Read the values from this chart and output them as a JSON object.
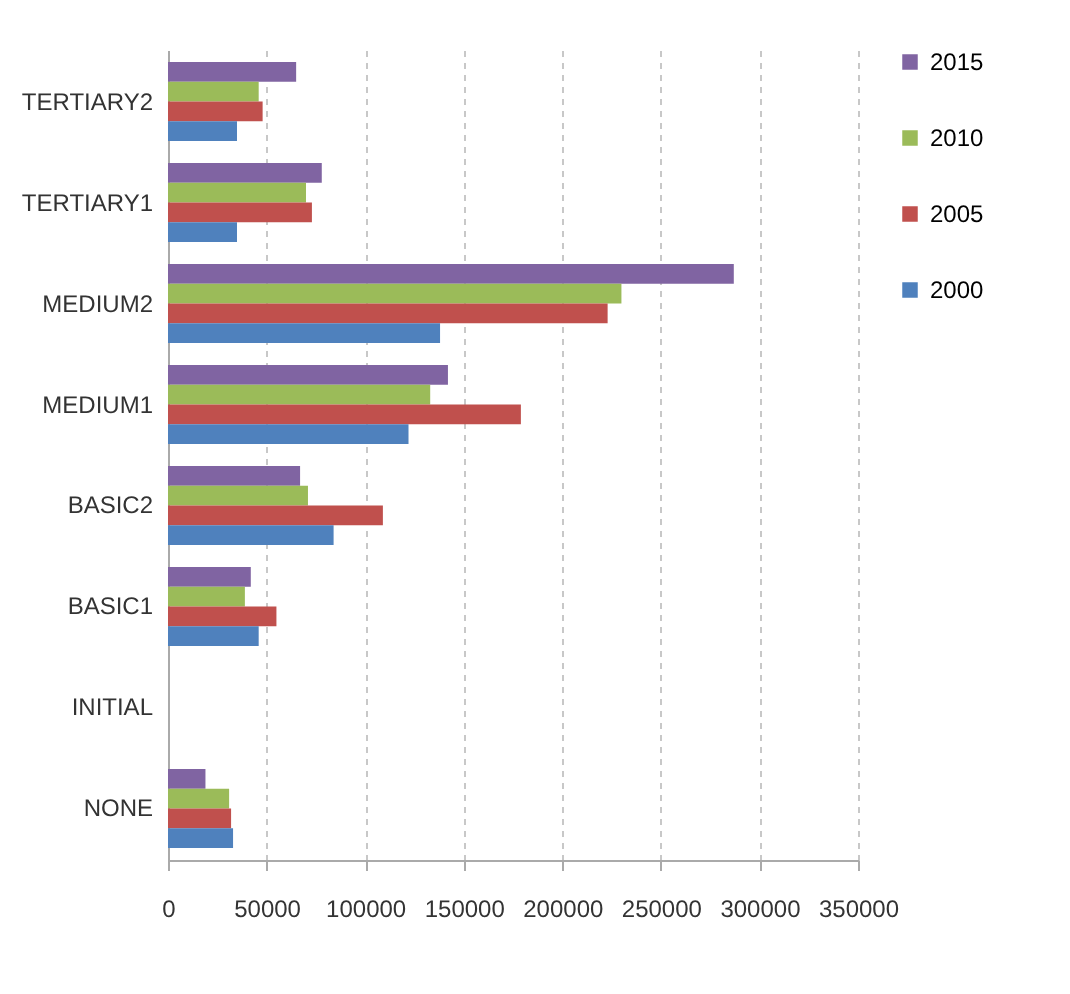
{
  "chart_data": {
    "type": "bar",
    "orientation": "horizontal",
    "categories": [
      "TERTIARY2",
      "TERTIARY1",
      "MEDIUM2",
      "MEDIUM1",
      "BASIC2",
      "BASIC1",
      "INITIAL",
      "NONE"
    ],
    "series": [
      {
        "name": "2015",
        "color": "#8064a2",
        "values": [
          65000,
          78000,
          287000,
          142000,
          67000,
          42000,
          null,
          19000
        ]
      },
      {
        "name": "2010",
        "color": "#9bbb59",
        "values": [
          46000,
          70000,
          230000,
          133000,
          71000,
          39000,
          null,
          31000
        ]
      },
      {
        "name": "2005",
        "color": "#c0504d",
        "values": [
          48000,
          73000,
          223000,
          179000,
          109000,
          55000,
          null,
          32000
        ]
      },
      {
        "name": "2000",
        "color": "#4f81bd",
        "values": [
          35000,
          35000,
          138000,
          122000,
          84000,
          46000,
          null,
          33000
        ]
      }
    ],
    "xlim": [
      0,
      350000
    ],
    "xticks": [
      0,
      50000,
      100000,
      150000,
      200000,
      250000,
      300000,
      350000
    ],
    "grid": "x",
    "legend": "right"
  }
}
